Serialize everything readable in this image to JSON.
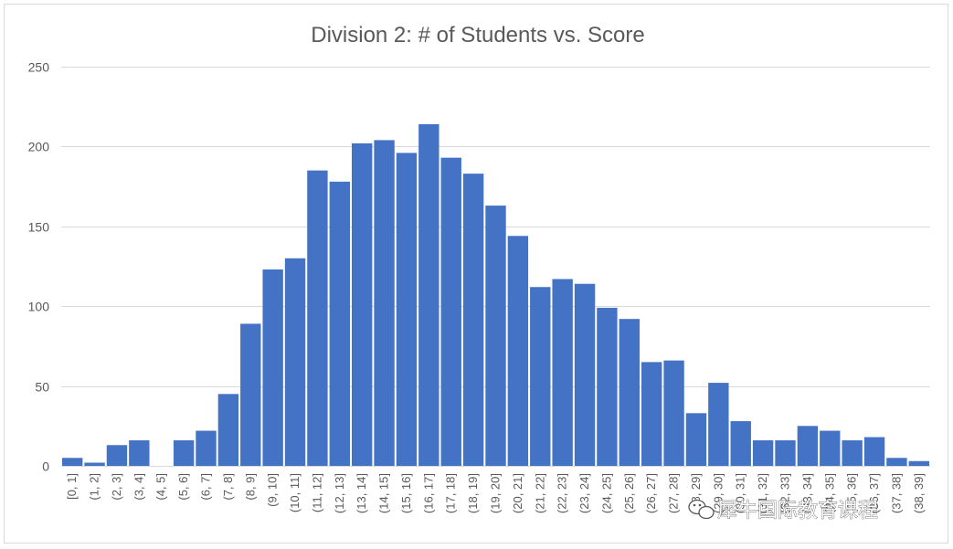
{
  "chart_data": {
    "type": "bar",
    "title": "Division 2: # of Students vs. Score",
    "xlabel": "",
    "ylabel": "",
    "ylim": [
      0,
      250
    ],
    "yticks": [
      0,
      50,
      100,
      150,
      200,
      250
    ],
    "grid": true,
    "legend": "none",
    "bar_color": "#4472C4",
    "categories": [
      "[0, 1]",
      "(1, 2]",
      "(2, 3]",
      "(3, 4]",
      "(4, 5]",
      "(5, 6]",
      "(6, 7]",
      "(7, 8]",
      "(8, 9]",
      "(9, 10]",
      "(10, 11]",
      "(11, 12]",
      "(12, 13]",
      "(13, 14]",
      "(14, 15]",
      "(15, 16]",
      "(16, 17]",
      "(17, 18]",
      "(18, 19]",
      "(19, 20]",
      "(20, 21]",
      "(21, 22]",
      "(22, 23]",
      "(23, 24]",
      "(24, 25]",
      "(25, 26]",
      "(26, 27]",
      "(27, 28]",
      "(28, 29]",
      "(29, 30]",
      "(30, 31]",
      "(31, 32]",
      "(32, 33]",
      "(33, 34]",
      "(34, 35]",
      "(35, 36]",
      "(36, 37]",
      "(37, 38]",
      "(38, 39]"
    ],
    "values": [
      5,
      2,
      13,
      16,
      0,
      16,
      22,
      45,
      89,
      123,
      130,
      185,
      178,
      202,
      204,
      196,
      214,
      193,
      183,
      163,
      144,
      112,
      117,
      114,
      99,
      92,
      65,
      66,
      33,
      52,
      28,
      16,
      16,
      25,
      22,
      16,
      18,
      5,
      3
    ]
  },
  "watermark": {
    "icon": "wechat-icon",
    "text": "犀牛国际教育课程"
  }
}
